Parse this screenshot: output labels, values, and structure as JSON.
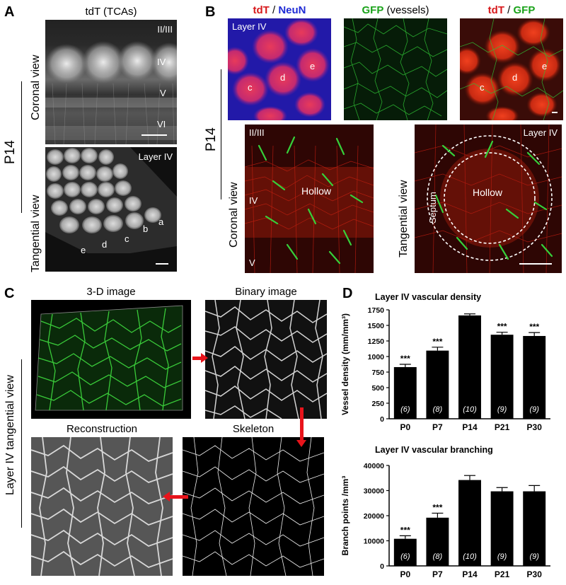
{
  "panels": {
    "A": {
      "label": "A",
      "title": "tdT (TCAs)",
      "age": "P14",
      "coronal_view": "Coronal view",
      "tangential_view": "Tangential view",
      "layers": [
        "II/III",
        "IV",
        "V",
        "VI"
      ],
      "layer_iv": "Layer IV",
      "barrels": [
        "a",
        "b",
        "c",
        "d",
        "e"
      ]
    },
    "B": {
      "label": "B",
      "titles": {
        "t1_red": "tdT",
        "t1_sep": " / ",
        "t1_blue": "NeuN",
        "t2_green": "GFP",
        "t2_rest": " (vessels)",
        "t3_red": "tdT",
        "t3_sep": " / ",
        "t3_green": "GFP"
      },
      "layer_iv": "Layer IV",
      "barrels": [
        "c",
        "d",
        "e"
      ],
      "age": "P14",
      "coronal_view": "Coronal view",
      "tangential_view": "Tangential view",
      "coronal_layers": [
        "II/III",
        "IV",
        "V"
      ],
      "hollow": "Hollow",
      "septum": "Septum"
    },
    "C": {
      "label": "C",
      "titles": [
        "3-D image",
        "Binary image",
        "Reconstruction",
        "Skeleton"
      ],
      "side_label": "Layer IV tangential view"
    },
    "D": {
      "label": "D"
    }
  },
  "colors": {
    "red": "#d7191c",
    "blue": "#1f2bd6",
    "green": "#1aa31a",
    "arrow": "#e8141b"
  },
  "chart_data": [
    {
      "type": "bar",
      "title": "Layer IV vascular density",
      "ylabel": "Vessel density (mm/mm³)",
      "categories": [
        "P0",
        "P7",
        "P14",
        "P21",
        "P30"
      ],
      "values": [
        830,
        1095,
        1660,
        1350,
        1330
      ],
      "errors": [
        45,
        55,
        25,
        40,
        55
      ],
      "n_labels": [
        "(6)",
        "(8)",
        "(10)",
        "(9)",
        "(9)"
      ],
      "significance": [
        "***",
        "***",
        "",
        "***",
        "***"
      ],
      "ylim": [
        0,
        1750
      ],
      "yticks": [
        "0",
        "250",
        "500",
        "750",
        "1000",
        "1250",
        "1500",
        "1750"
      ]
    },
    {
      "type": "bar",
      "title": "Layer IV vascular branching",
      "ylabel": "Branch points /mm³",
      "categories": [
        "P0",
        "P7",
        "P14",
        "P21",
        "P30"
      ],
      "values": [
        10800,
        19200,
        34200,
        29700,
        29700
      ],
      "errors": [
        1200,
        1800,
        1800,
        1500,
        2300
      ],
      "n_labels": [
        "(6)",
        "(8)",
        "(10)",
        "(9)",
        "(9)"
      ],
      "significance": [
        "***",
        "***",
        "",
        "",
        ""
      ],
      "ylim": [
        0,
        40000
      ],
      "yticks": [
        "0",
        "10000",
        "20000",
        "30000",
        "40000"
      ]
    }
  ]
}
